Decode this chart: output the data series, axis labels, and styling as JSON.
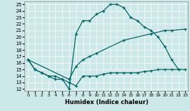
{
  "xlabel": "Humidex (Indice chaleur)",
  "bg_color": "#cce8e8",
  "line_color": "#006666",
  "xlim_min": -0.5,
  "xlim_max": 23.4,
  "ylim_min": 11.7,
  "ylim_max": 25.5,
  "xticks": [
    0,
    1,
    2,
    3,
    4,
    5,
    6,
    7,
    8,
    9,
    10,
    11,
    12,
    13,
    14,
    15,
    16,
    17,
    18,
    19,
    20,
    21,
    22,
    23
  ],
  "yticks": [
    12,
    13,
    14,
    15,
    16,
    17,
    18,
    19,
    20,
    21,
    22,
    23,
    24,
    25
  ],
  "curve1_x": [
    0,
    1,
    2,
    3,
    4,
    5,
    6,
    7,
    8,
    9,
    10,
    11,
    12,
    13,
    14,
    15,
    16,
    17,
    18,
    19,
    20,
    21,
    22
  ],
  "curve1_y": [
    16.5,
    15.0,
    14.5,
    14.0,
    13.5,
    13.5,
    12.0,
    20.5,
    22.5,
    22.5,
    23.5,
    24.0,
    25.0,
    25.0,
    24.5,
    23.0,
    22.5,
    21.5,
    21.0,
    20.0,
    18.5,
    16.5,
    15.0
  ],
  "curve2_x": [
    0,
    1,
    2,
    3,
    4,
    5,
    6,
    7,
    8,
    9,
    10,
    11,
    12,
    13,
    14,
    15,
    16,
    17,
    18,
    19,
    20,
    21,
    22,
    23
  ],
  "curve2_y": [
    16.5,
    15.0,
    14.5,
    14.0,
    14.0,
    13.5,
    13.0,
    12.5,
    14.0,
    14.0,
    14.0,
    14.3,
    14.5,
    14.5,
    14.5,
    14.5,
    14.5,
    14.7,
    14.8,
    15.0,
    15.0,
    15.0,
    15.0,
    15.0
  ],
  "curve3_x": [
    0,
    6,
    7,
    8,
    9,
    10,
    14,
    18,
    20,
    21,
    23
  ],
  "curve3_y": [
    16.5,
    13.5,
    15.5,
    16.5,
    17.0,
    17.5,
    19.5,
    20.5,
    21.0,
    21.0,
    21.2
  ]
}
